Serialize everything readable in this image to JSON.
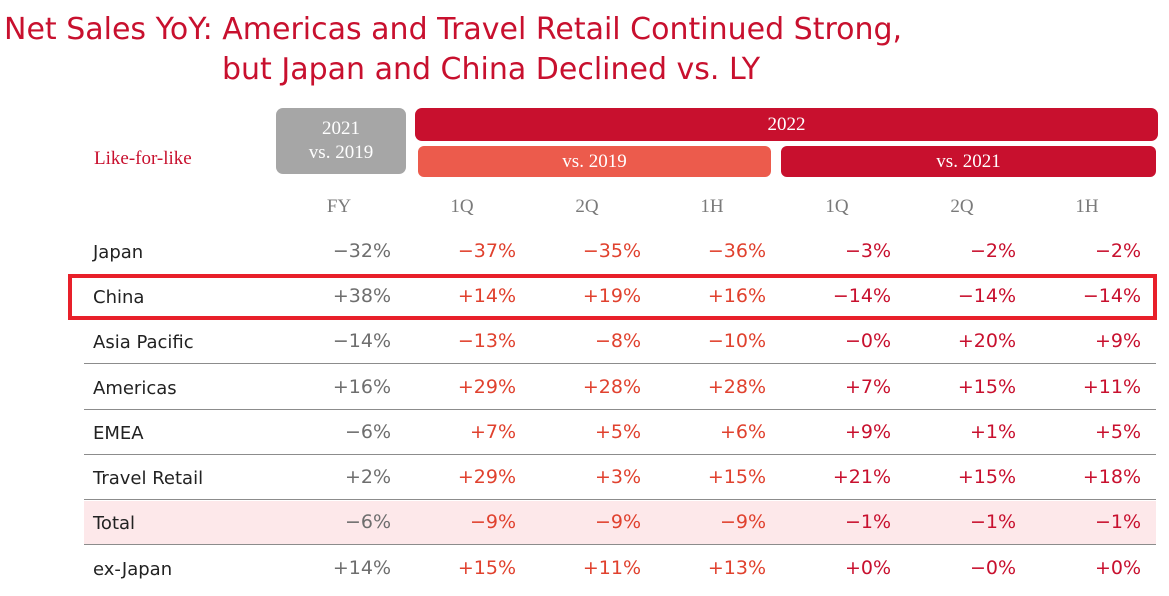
{
  "title": {
    "line1": "Net Sales YoY: Americas and Travel Retail Continued Strong,",
    "line2": "but Japan and China Declined vs. LY"
  },
  "header": {
    "like_for_like": "Like-for-like",
    "y2021_line1": "2021",
    "y2021_line2": "vs. 2019",
    "y2022": "2022",
    "vs2019": "vs. 2019",
    "vs2021": "vs. 2021"
  },
  "columns": [
    "FY",
    "1Q",
    "2Q",
    "1H",
    "1Q",
    "2Q",
    "1H"
  ],
  "rows": [
    {
      "label": "Japan",
      "values": [
        "−32%",
        "−37%",
        "−35%",
        "−36%",
        "−3%",
        "−2%",
        "−2%"
      ]
    },
    {
      "label": "China",
      "values": [
        "+38%",
        "+14%",
        "+19%",
        "+16%",
        "−14%",
        "−14%",
        "−14%"
      ]
    },
    {
      "label": "Asia Pacific",
      "values": [
        "−14%",
        "−13%",
        "−8%",
        "−10%",
        "−0%",
        "+20%",
        "+9%"
      ]
    },
    {
      "label": "Americas",
      "values": [
        "+16%",
        "+29%",
        "+28%",
        "+28%",
        "+7%",
        "+15%",
        "+11%"
      ]
    },
    {
      "label": "EMEA",
      "values": [
        "−6%",
        "+7%",
        "+5%",
        "+6%",
        "+9%",
        "+1%",
        "+5%"
      ]
    },
    {
      "label": "Travel Retail",
      "values": [
        "+2%",
        "+29%",
        "+3%",
        "+15%",
        "+21%",
        "+15%",
        "+18%"
      ]
    },
    {
      "label": "Total",
      "values": [
        "−6%",
        "−9%",
        "−9%",
        "−9%",
        "−1%",
        "−1%",
        "−1%"
      ]
    },
    {
      "label": "ex-Japan",
      "values": [
        "+14%",
        "+15%",
        "+11%",
        "+13%",
        "+0%",
        "−0%",
        "+0%"
      ]
    }
  ],
  "colors": {
    "accent": "#c8102e",
    "vs2019": "#ec5b4c",
    "fy_header": "#a6a6a6",
    "total_row_bg": "#fde8ea",
    "highlight_border": "#e8202a"
  }
}
